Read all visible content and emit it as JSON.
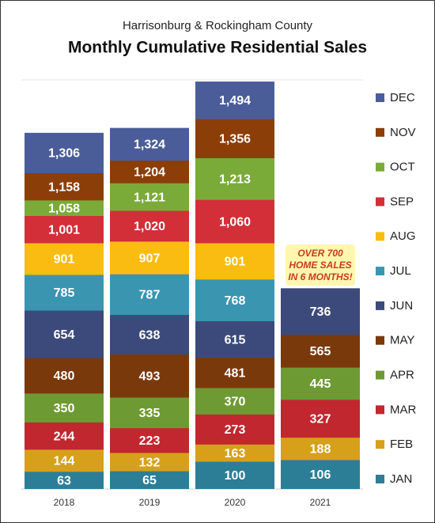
{
  "chart_data": {
    "type": "bar",
    "layout": "layered",
    "title": "Monthly Cumulative Residential Sales",
    "subtitle": "Harrisonburg & Rockingham County",
    "annotation": "OVER 700 HOME SALES IN 6 MONTHS!",
    "categories": [
      "2018",
      "2019",
      "2020",
      "2021"
    ],
    "ylim": [
      0,
      1500
    ],
    "series": [
      {
        "name": "JAN",
        "color": "#2c7e97",
        "values": [
          63,
          65,
          100,
          106
        ]
      },
      {
        "name": "FEB",
        "color": "#d7a01b",
        "values": [
          144,
          132,
          163,
          188
        ]
      },
      {
        "name": "MAR",
        "color": "#c1272f",
        "values": [
          244,
          223,
          273,
          327
        ]
      },
      {
        "name": "APR",
        "color": "#6e9a33",
        "values": [
          350,
          335,
          370,
          445
        ]
      },
      {
        "name": "MAY",
        "color": "#7a390b",
        "values": [
          480,
          493,
          481,
          565
        ]
      },
      {
        "name": "JUN",
        "color": "#3c4a7b",
        "values": [
          654,
          638,
          615,
          736
        ]
      },
      {
        "name": "JUL",
        "color": "#3a95b1",
        "values": [
          785,
          787,
          768,
          null
        ]
      },
      {
        "name": "AUG",
        "color": "#fbbc11",
        "values": [
          901,
          907,
          901,
          null
        ]
      },
      {
        "name": "SEP",
        "color": "#d22f38",
        "values": [
          1001,
          1020,
          1060,
          null
        ]
      },
      {
        "name": "OCT",
        "color": "#7aab38",
        "values": [
          1058,
          1121,
          1213,
          null
        ]
      },
      {
        "name": "NOV",
        "color": "#8b3e08",
        "values": [
          1158,
          1204,
          1356,
          null
        ]
      },
      {
        "name": "DEC",
        "color": "#4a5d99",
        "values": [
          1306,
          1324,
          1494,
          null
        ]
      }
    ],
    "value_labels": [
      [
        "63",
        "65",
        "100",
        "106"
      ],
      [
        "144",
        "132",
        "163",
        "188"
      ],
      [
        "244",
        "223",
        "273",
        "327"
      ],
      [
        "350",
        "335",
        "370",
        "445"
      ],
      [
        "480",
        "493",
        "481",
        "565"
      ],
      [
        "654",
        "638",
        "615",
        "736"
      ],
      [
        "785",
        "787",
        "768",
        null
      ],
      [
        "901",
        "907",
        "901",
        null
      ],
      [
        "1,001",
        "1,020",
        "1,060",
        null
      ],
      [
        "1,058",
        "1,121",
        "1,213",
        null
      ],
      [
        "1,158",
        "1,204",
        "1,356",
        null
      ],
      [
        "1,306",
        "1,324",
        "1,494",
        null
      ]
    ]
  }
}
